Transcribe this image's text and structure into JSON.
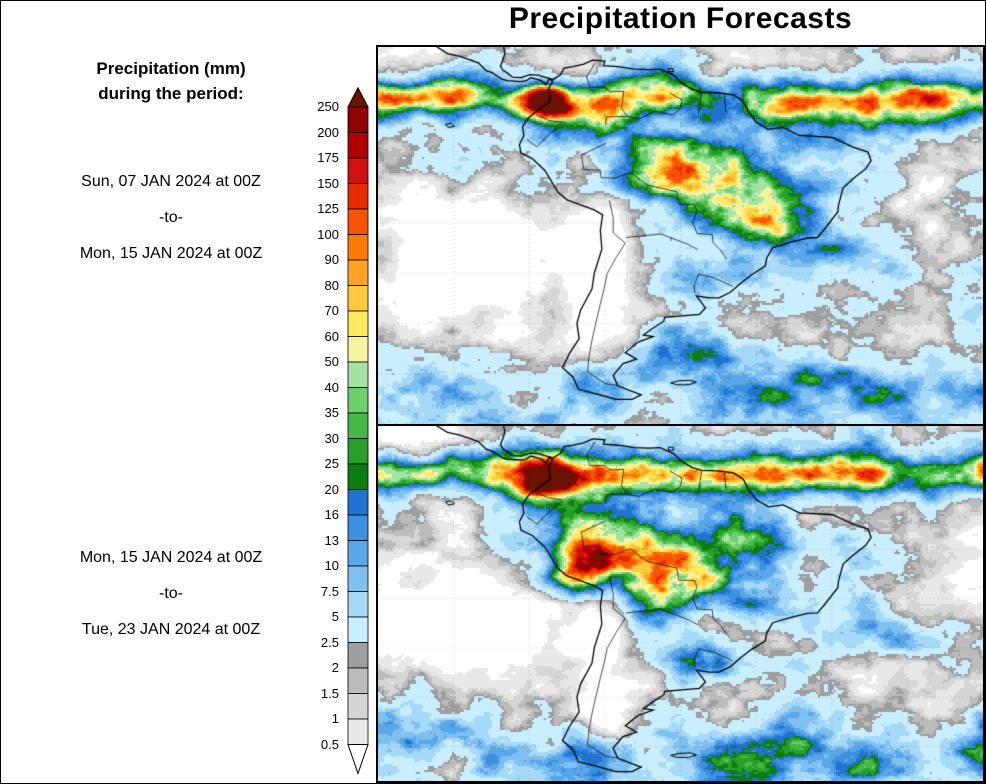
{
  "title": "Precipitation Forecasts",
  "legend": {
    "caption_line1": "Precipitation (mm)",
    "caption_line2": "during the period:"
  },
  "periods": {
    "period1": {
      "start": "Sun, 07 JAN 2024 at 00Z",
      "separator": "-to-",
      "end": "Mon, 15 JAN 2024 at 00Z"
    },
    "period2": {
      "start": "Mon, 15 JAN 2024 at 00Z",
      "separator": "-to-",
      "end": "Tue, 23 JAN 2024 at 00Z"
    }
  },
  "colorbar": {
    "ticks_top_to_bottom": [
      "250",
      "200",
      "175",
      "150",
      "125",
      "100",
      "90",
      "80",
      "70",
      "60",
      "50",
      "40",
      "35",
      "30",
      "25",
      "20",
      "16",
      "13",
      "10",
      "7.5",
      "5",
      "2.5",
      "2",
      "1.5",
      "1",
      "0.5"
    ],
    "segment_colors_top_to_bottom": [
      "#920000",
      "#b20000",
      "#d31010",
      "#e92c00",
      "#f95300",
      "#ff7a00",
      "#ffa321",
      "#ffc940",
      "#ffe95e",
      "#f7f3a0",
      "#a4e3a4",
      "#6ecf6e",
      "#45b945",
      "#27a02a",
      "#0e7d10",
      "#2173cf",
      "#3b90e0",
      "#59a7e8",
      "#7fc0f0",
      "#a6d9f7",
      "#c9eeff",
      "#9e9e9e",
      "#bcbcbc",
      "#d6d6d6",
      "#e8e8e8"
    ],
    "above_max_color": "#6b1200",
    "below_min_color": "#ffffff",
    "outline_color": "#000000"
  },
  "page": {
    "background": "#ffffff",
    "frame_color": "#000000"
  }
}
